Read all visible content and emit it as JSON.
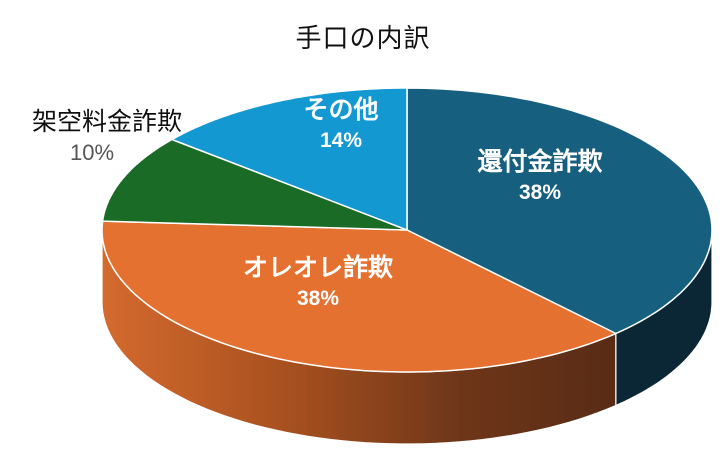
{
  "chart_data": {
    "type": "pie",
    "style": "3d-pie",
    "title": "手口の内訳",
    "categories": [
      "還付金詐欺",
      "オレオレ詐欺",
      "架空料金詐欺",
      "その他"
    ],
    "values": [
      38,
      38,
      10,
      14
    ],
    "unit": "%",
    "labels": [
      {
        "name": "還付金詐欺",
        "pct": "38%"
      },
      {
        "name": "オレオレ詐欺",
        "pct": "38%"
      },
      {
        "name": "架空料金詐欺",
        "pct": "10%"
      },
      {
        "name": "その他",
        "pct": "14%"
      }
    ],
    "colors": [
      "#175F7F",
      "#E57131",
      "#1A6B25",
      "#1398D2"
    ],
    "side_colors": [
      "#0B2735",
      "#6B3318",
      "#0F3F16",
      "#0B5E82"
    ],
    "start_angle_deg": -90,
    "direction": "clockwise",
    "legend": "none"
  }
}
